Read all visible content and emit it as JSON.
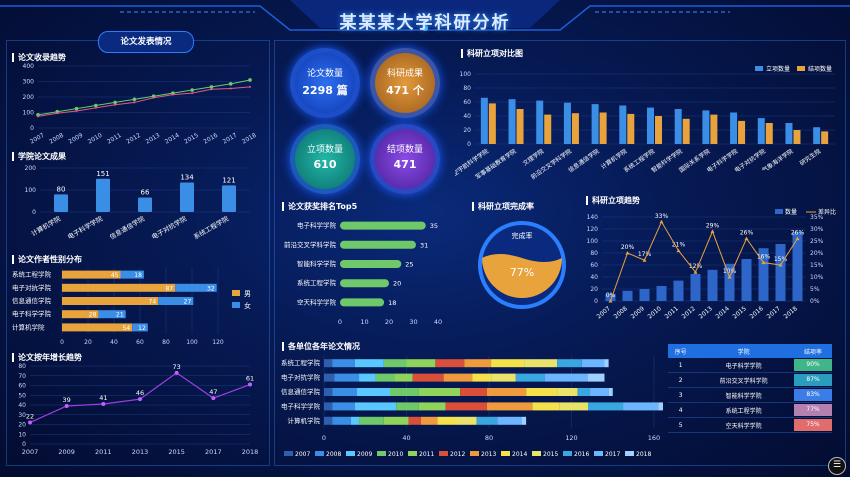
{
  "page_title": "某某某大学科研分析",
  "tab_label": "论文发表情况",
  "stats": [
    {
      "label": "论文数量",
      "value": "2298 篇",
      "color": "#1f5ce8"
    },
    {
      "label": "科研成果",
      "value": "471 个",
      "color": "#d9822b"
    },
    {
      "label": "立项数量",
      "value": "610",
      "color": "#1aa39a"
    },
    {
      "label": "结项数量",
      "value": "471",
      "color": "#7a3fd1"
    }
  ],
  "colors": {
    "blue": "#3a8ee6",
    "orange": "#e8a33d",
    "green": "#6fc96a",
    "purple": "#9b3fe0"
  },
  "table": {
    "headers": [
      "序号",
      "学院",
      "结项率"
    ],
    "rows": [
      {
        "no": "1",
        "name": "电子科学学院",
        "rate": "90%",
        "color": "#3fb58a"
      },
      {
        "no": "2",
        "name": "前沿交叉学科学院",
        "rate": "87%",
        "color": "#2a9dbf"
      },
      {
        "no": "3",
        "name": "智能科学学院",
        "rate": "83%",
        "color": "#3a7de8"
      },
      {
        "no": "4",
        "name": "系统工程学院",
        "rate": "77%",
        "color": "#b57fb0"
      },
      {
        "no": "5",
        "name": "空天科学学院",
        "rate": "75%",
        "color": "#e06c6c"
      }
    ]
  },
  "chart_data": [
    {
      "id": "paper-trend",
      "type": "line",
      "title": "论文收录趋势",
      "x": [
        "2007",
        "2008",
        "2009",
        "2010",
        "2011",
        "2012",
        "2013",
        "2014",
        "2015",
        "2016",
        "2017",
        "2018"
      ],
      "series": [
        {
          "values": [
            85,
            105,
            125,
            145,
            165,
            185,
            205,
            225,
            245,
            265,
            285,
            310
          ]
        },
        {
          "values": [
            75,
            95,
            110,
            130,
            150,
            165,
            195,
            215,
            225,
            250,
            255,
            265
          ]
        }
      ],
      "ylim": [
        0,
        400
      ],
      "yticks": [
        0,
        100,
        200,
        300,
        400
      ]
    },
    {
      "id": "discipline",
      "type": "bar",
      "title": "学院论文成果",
      "categories": [
        "计算机学院",
        "电子科学学院",
        "信息通信学院",
        "电子对抗学院",
        "系统工程学院"
      ],
      "values": [
        80,
        151,
        66,
        134,
        121
      ],
      "ylim": [
        0,
        200
      ],
      "yticks": [
        0,
        100,
        200
      ]
    },
    {
      "id": "gender",
      "type": "bar",
      "title": "论文作者性别分布",
      "categories": [
        "系统工程学院",
        "电子对抗学院",
        "信息通信学院",
        "电子科学学院",
        "计算机学院"
      ],
      "series": [
        {
          "name": "男",
          "values": [
            45,
            87,
            74,
            28,
            54
          ]
        },
        {
          "name": "女",
          "values": [
            18,
            32,
            27,
            21,
            12
          ]
        }
      ],
      "xlim": [
        0,
        120
      ],
      "xticks": [
        0,
        20,
        40,
        60,
        80,
        100,
        120
      ]
    },
    {
      "id": "growth",
      "type": "line",
      "title": "论文按年增长趋势",
      "x": [
        "2007",
        "2009",
        "2011",
        "2013",
        "2015",
        "2017",
        "2018"
      ],
      "values": [
        22,
        39,
        41,
        46,
        73,
        47,
        61
      ],
      "ylim": [
        0,
        80
      ],
      "yticks": [
        0,
        10,
        20,
        30,
        40,
        50,
        60,
        70,
        80
      ]
    },
    {
      "id": "award",
      "type": "bar",
      "title": "论文获奖排名Top5",
      "categories": [
        "电子科学学院",
        "前沿交叉学科学院",
        "智能科学学院",
        "系统工程学院",
        "空天科学学院"
      ],
      "values": [
        35,
        31,
        25,
        20,
        18
      ],
      "xlim": [
        0,
        40
      ],
      "xticks": [
        0,
        10,
        20,
        30,
        40
      ]
    },
    {
      "id": "completion",
      "type": "pie",
      "title": "科研立项完成率",
      "label": "完成率",
      "value": "77%"
    },
    {
      "id": "project-compare",
      "type": "bar",
      "title": "科研立项对比图",
      "categories": [
        "航空宇航科学学院",
        "军事基础教育学院",
        "文理学院",
        "前沿交叉学科学院",
        "信息通信学院",
        "计算机学院",
        "系统工程学院",
        "智能科学学院",
        "国际关系学院",
        "电子科学学院",
        "电子对抗学院",
        "气象海洋学院",
        "研究生院"
      ],
      "series": [
        {
          "name": "立项数量",
          "values": [
            66,
            64,
            62,
            59,
            57,
            55,
            52,
            50,
            48,
            45,
            37,
            30,
            24
          ]
        },
        {
          "name": "结项数量",
          "values": [
            58,
            50,
            42,
            44,
            45,
            43,
            40,
            36,
            42,
            33,
            30,
            20,
            18
          ]
        }
      ],
      "ylim": [
        0,
        100
      ],
      "yticks": [
        0,
        20,
        40,
        60,
        80,
        100
      ]
    },
    {
      "id": "project-trend",
      "type": "bar",
      "title": "科研立项趋势",
      "x": [
        "2007",
        "2008",
        "2009",
        "2010",
        "2011",
        "2012",
        "2013",
        "2014",
        "2015",
        "2016",
        "2017",
        "2018"
      ],
      "series": [
        {
          "name": "数量",
          "values": [
            12,
            17,
            20,
            25,
            34,
            45,
            52,
            62,
            70,
            88,
            95,
            115
          ]
        },
        {
          "name": "差异比",
          "values": [
            0,
            20,
            17,
            33,
            21,
            12,
            29,
            10,
            26,
            16,
            15,
            26
          ]
        }
      ],
      "ylim": [
        0,
        140
      ],
      "yticks": [
        0,
        20,
        40,
        60,
        80,
        100,
        120,
        140
      ],
      "y2ticks": [
        "0%",
        "5%",
        "10%",
        "15%",
        "20%",
        "25%",
        "30%",
        "35%"
      ],
      "labels": [
        "0%",
        "20%",
        "17%",
        "33%",
        "21%",
        "12%",
        "29%",
        "10%",
        "26%",
        "16%",
        "15%",
        "26%"
      ]
    },
    {
      "id": "yearly",
      "type": "bar",
      "title": "各单位各年论文情况",
      "categories": [
        "系统工程学院",
        "电子对抗学院",
        "信息通信学院",
        "电子科学学院",
        "计算机学院"
      ],
      "series": [
        {
          "name": "2007",
          "values": [
            4,
            5,
            4,
            4,
            4
          ]
        },
        {
          "name": "2008",
          "values": [
            11,
            12,
            12,
            11,
            9
          ]
        },
        {
          "name": "2009",
          "values": [
            14,
            8,
            16,
            20,
            4
          ]
        },
        {
          "name": "2010",
          "values": [
            11,
            9,
            14,
            11,
            12
          ]
        },
        {
          "name": "2011",
          "values": [
            14,
            9,
            20,
            13,
            12
          ]
        },
        {
          "name": "2012",
          "values": [
            14,
            15,
            13,
            20,
            6
          ]
        },
        {
          "name": "2013",
          "values": [
            13,
            14,
            19,
            22,
            8
          ]
        },
        {
          "name": "2014",
          "values": [
            16,
            9,
            15,
            13,
            9
          ]
        },
        {
          "name": "2015",
          "values": [
            16,
            12,
            10,
            14,
            10
          ]
        },
        {
          "name": "2016",
          "values": [
            12,
            14,
            6,
            17,
            10
          ]
        },
        {
          "name": "2017",
          "values": [
            11,
            21,
            9,
            17,
            12
          ]
        },
        {
          "name": "2018",
          "values": [
            2,
            8,
            2,
            16,
            2
          ]
        }
      ],
      "xlim": [
        0,
        160
      ],
      "xticks": [
        0,
        40,
        80,
        120,
        160
      ]
    }
  ]
}
